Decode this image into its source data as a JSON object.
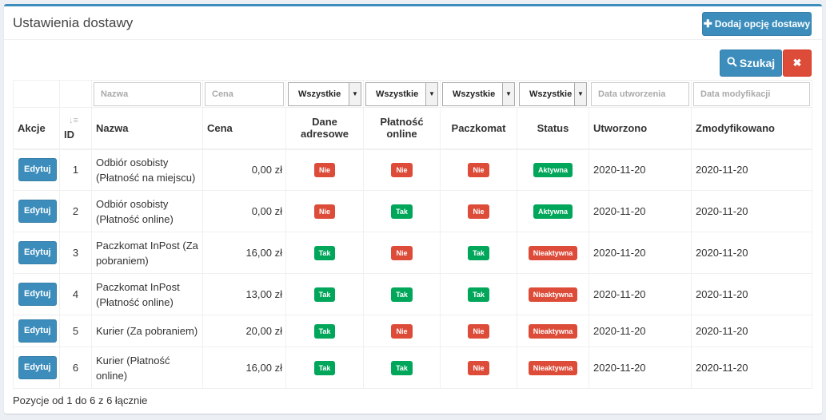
{
  "header": {
    "title": "Ustawienia dostawy",
    "add_button": "Dodaj opcję dostawy"
  },
  "toolbar": {
    "search_button": "Szukaj"
  },
  "filters": {
    "name_placeholder": "Nazwa",
    "price_placeholder": "Cena",
    "address_select": "Wszystkie",
    "online_select": "Wszystkie",
    "locker_select": "Wszystkie",
    "status_select": "Wszystkie",
    "created_placeholder": "Data utworzenia",
    "modified_placeholder": "Data modyfikacji"
  },
  "columns": {
    "actions": "Akcje",
    "id": "ID",
    "name": "Nazwa",
    "price": "Cena",
    "address_line1": "Dane",
    "address_line2": "adresowe",
    "online_line1": "Płatność",
    "online_line2": "online",
    "locker": "Paczkomat",
    "status": "Status",
    "created": "Utworzono",
    "modified": "Zmodyfikowano"
  },
  "rows": [
    {
      "edit": "Edytuj",
      "id": "1",
      "name": "Odbiór osobisty (Płatność na miejscu)",
      "price": "0,00 zł",
      "address": "Nie",
      "online": "Nie",
      "locker": "Nie",
      "status": "Aktywna",
      "created": "2020-11-20",
      "modified": "2020-11-20"
    },
    {
      "edit": "Edytuj",
      "id": "2",
      "name": "Odbiór osobisty (Płatność online)",
      "price": "0,00 zł",
      "address": "Nie",
      "online": "Tak",
      "locker": "Nie",
      "status": "Aktywna",
      "created": "2020-11-20",
      "modified": "2020-11-20"
    },
    {
      "edit": "Edytuj",
      "id": "3",
      "name": "Paczkomat InPost (Za pobraniem)",
      "price": "16,00 zł",
      "address": "Tak",
      "online": "Nie",
      "locker": "Tak",
      "status": "Nieaktywna",
      "created": "2020-11-20",
      "modified": "2020-11-20"
    },
    {
      "edit": "Edytuj",
      "id": "4",
      "name": "Paczkomat InPost (Płatność online)",
      "price": "13,00 zł",
      "address": "Tak",
      "online": "Tak",
      "locker": "Tak",
      "status": "Nieaktywna",
      "created": "2020-11-20",
      "modified": "2020-11-20"
    },
    {
      "edit": "Edytuj",
      "id": "5",
      "name": "Kurier (Za pobraniem)",
      "price": "20,00 zł",
      "address": "Tak",
      "online": "Nie",
      "locker": "Nie",
      "status": "Nieaktywna",
      "created": "2020-11-20",
      "modified": "2020-11-20"
    },
    {
      "edit": "Edytuj",
      "id": "6",
      "name": "Kurier (Płatność online)",
      "price": "16,00 zł",
      "address": "Tak",
      "online": "Tak",
      "locker": "Nie",
      "status": "Nieaktywna",
      "created": "2020-11-20",
      "modified": "2020-11-20"
    }
  ],
  "footer": {
    "summary": "Pozycje od 1 do 6 z 6 łącznie"
  },
  "colors": {
    "primary": "#3c8dbc",
    "danger": "#dd4b39",
    "success": "#00a65a"
  }
}
